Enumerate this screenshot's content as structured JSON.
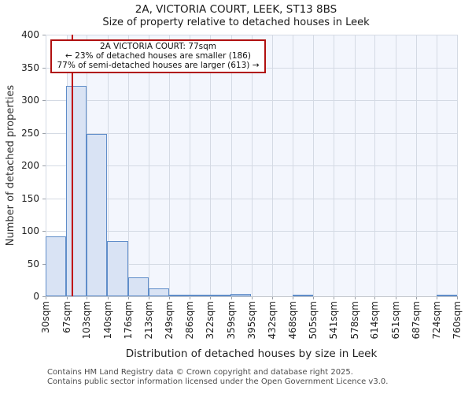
{
  "page": {
    "title": "2A, VICTORIA COURT, LEEK, ST13 8BS",
    "subtitle": "Size of property relative to detached houses in Leek",
    "footer_line1": "Contains HM Land Registry data © Crown copyright and database right 2025.",
    "footer_line2": "Contains public sector information licensed under the Open Government Licence v3.0."
  },
  "annotation": {
    "line1": "2A VICTORIA COURT: 77sqm",
    "line2": "← 23% of detached houses are smaller (186)",
    "line3": "77% of semi-detached houses are larger (613) →",
    "border_color": "#b01010"
  },
  "chart_data": {
    "type": "bar",
    "title": "2A, VICTORIA COURT, LEEK, ST13 8BS",
    "subtitle": "Size of property relative to detached houses in Leek",
    "xlabel": "Distribution of detached houses by size in Leek",
    "ylabel": "Number of detached properties",
    "xlim_sqm": [
      30,
      760
    ],
    "ylim": [
      0,
      400
    ],
    "y_ticks": [
      0,
      50,
      100,
      150,
      200,
      250,
      300,
      350,
      400
    ],
    "bin_edges_sqm": [
      30,
      67,
      103,
      140,
      176,
      213,
      249,
      286,
      322,
      359,
      395,
      432,
      468,
      505,
      541,
      578,
      614,
      651,
      687,
      724,
      760
    ],
    "x_tick_labels": [
      "30sqm",
      "67sqm",
      "103sqm",
      "140sqm",
      "176sqm",
      "213sqm",
      "249sqm",
      "286sqm",
      "322sqm",
      "359sqm",
      "395sqm",
      "432sqm",
      "468sqm",
      "505sqm",
      "541sqm",
      "578sqm",
      "614sqm",
      "651sqm",
      "687sqm",
      "724sqm",
      "760sqm"
    ],
    "values": [
      92,
      322,
      248,
      84,
      29,
      12,
      3,
      2,
      3,
      4,
      0,
      0,
      2,
      0,
      0,
      0,
      0,
      0,
      0,
      2
    ],
    "grid": true,
    "marker": {
      "label": "2A VICTORIA COURT",
      "value_sqm": 77,
      "color": "#c00000"
    },
    "highlight_band": {
      "from_sqm": 67,
      "to_sqm": 760,
      "color": "#f3f6fd"
    },
    "colors": {
      "bar_fill": "#d9e3f4",
      "bar_border": "#5f8dc9",
      "grid": "#d4dae4",
      "axis": "#c3c7cd",
      "tick": "#9aa0a8"
    }
  }
}
